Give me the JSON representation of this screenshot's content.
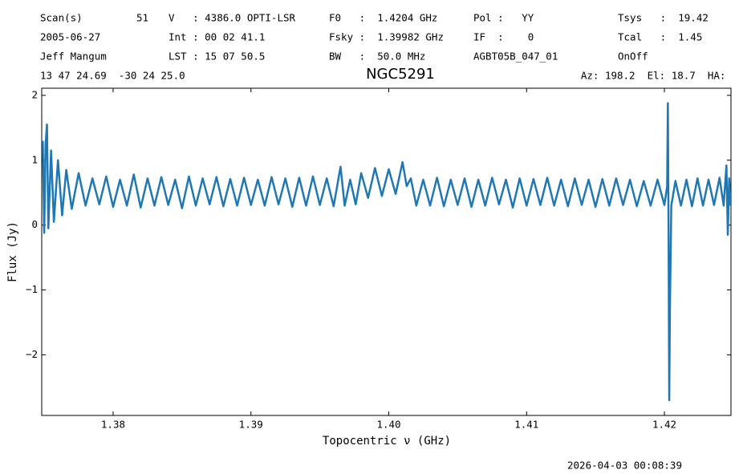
{
  "chart_data": {
    "type": "line",
    "title": "NGC5291",
    "annotations": [
      "Scan(s)",
      "51",
      "V   : 4386.0 OPTI-LSR",
      "F0   :  1.4204 GHz",
      "Pol :   YY",
      "Tsys   :  19.42",
      "2005-06-27",
      "Int : 00 02 41.1",
      "Fsky :  1.39982 GHz",
      "IF  :    0",
      "Tcal   :  1.45",
      "Jeff Mangum",
      "LST : 15 07 50.5",
      "BW   :  50.0 MHz",
      "AGBT05B_047_01",
      "OnOff",
      "13 47 24.69  -30 24 25.0",
      "Az: 198.2  El: 18.7  HA: ",
      "2026-04-03 00:08:39"
    ],
    "x_label": "Topocentric ν (GHz)",
    "y_label": "Flux (Jy)",
    "xlim": [
      1.37482,
      1.42483
    ],
    "ylim": [
      -2.935,
      2.11
    ],
    "xticks": [
      1.38,
      1.39,
      {
        "value": 1.4,
        "label": "1.40"
      },
      1.41,
      1.42
    ],
    "yticks": [
      {
        "value": -2,
        "label": "−2"
      },
      {
        "value": -1,
        "label": "−1"
      },
      0,
      1,
      2
    ],
    "series": [
      {
        "color": "#1f77b4",
        "x": [
          1.3749,
          1.375,
          1.3751,
          1.3752,
          1.3753,
          1.3755,
          1.3757,
          1.376,
          1.3763,
          1.3766,
          1.377,
          1.3775,
          1.378,
          1.3785,
          1.379,
          1.3795,
          1.38,
          1.3805,
          1.381,
          1.3815,
          1.382,
          1.3825,
          1.383,
          1.3835,
          1.384,
          1.3845,
          1.385,
          1.3855,
          1.386,
          1.3865,
          1.387,
          1.3875,
          1.388,
          1.3885,
          1.389,
          1.3895,
          1.39,
          1.3905,
          1.391,
          1.3915,
          1.392,
          1.3925,
          1.393,
          1.3935,
          1.394,
          1.3945,
          1.395,
          1.3955,
          1.396,
          1.3965,
          1.3968,
          1.3972,
          1.3976,
          1.398,
          1.3985,
          1.399,
          1.3995,
          1.4,
          1.4005,
          1.401,
          1.4013,
          1.4016,
          1.402,
          1.4025,
          1.403,
          1.4035,
          1.404,
          1.4045,
          1.405,
          1.4055,
          1.406,
          1.4065,
          1.407,
          1.4075,
          1.408,
          1.4085,
          1.409,
          1.4095,
          1.41,
          1.4105,
          1.411,
          1.4115,
          1.412,
          1.4125,
          1.413,
          1.4135,
          1.414,
          1.4145,
          1.415,
          1.4155,
          1.416,
          1.4165,
          1.417,
          1.4175,
          1.418,
          1.4185,
          1.419,
          1.4195,
          1.42,
          1.4202,
          1.42025,
          1.4203,
          1.42035,
          1.4204,
          1.4205,
          1.4208,
          1.4212,
          1.4216,
          1.422,
          1.4224,
          1.4228,
          1.4232,
          1.4236,
          1.424,
          1.4243,
          1.4245,
          1.4246,
          1.4247,
          1.4248
        ],
        "values": [
          1.3,
          -0.12,
          1.25,
          1.55,
          -0.05,
          1.15,
          0.05,
          1.0,
          0.15,
          0.85,
          0.25,
          0.8,
          0.3,
          0.72,
          0.32,
          0.75,
          0.28,
          0.7,
          0.3,
          0.78,
          0.27,
          0.72,
          0.3,
          0.74,
          0.31,
          0.7,
          0.26,
          0.75,
          0.3,
          0.72,
          0.32,
          0.74,
          0.29,
          0.71,
          0.3,
          0.73,
          0.31,
          0.7,
          0.3,
          0.74,
          0.32,
          0.72,
          0.28,
          0.73,
          0.3,
          0.75,
          0.31,
          0.72,
          0.29,
          0.9,
          0.3,
          0.7,
          0.32,
          0.8,
          0.42,
          0.88,
          0.45,
          0.86,
          0.48,
          0.97,
          0.6,
          0.72,
          0.3,
          0.7,
          0.3,
          0.73,
          0.29,
          0.7,
          0.31,
          0.72,
          0.28,
          0.7,
          0.3,
          0.73,
          0.32,
          0.7,
          0.27,
          0.72,
          0.3,
          0.71,
          0.31,
          0.73,
          0.3,
          0.7,
          0.29,
          0.72,
          0.31,
          0.7,
          0.28,
          0.71,
          0.3,
          0.72,
          0.31,
          0.7,
          0.29,
          0.68,
          0.3,
          0.7,
          0.31,
          0.6,
          1.88,
          -0.05,
          -2.7,
          -1.3,
          0.3,
          0.68,
          0.3,
          0.7,
          0.29,
          0.72,
          0.3,
          0.7,
          0.31,
          0.73,
          0.3,
          0.92,
          -0.15,
          0.72,
          0.3
        ]
      }
    ]
  }
}
